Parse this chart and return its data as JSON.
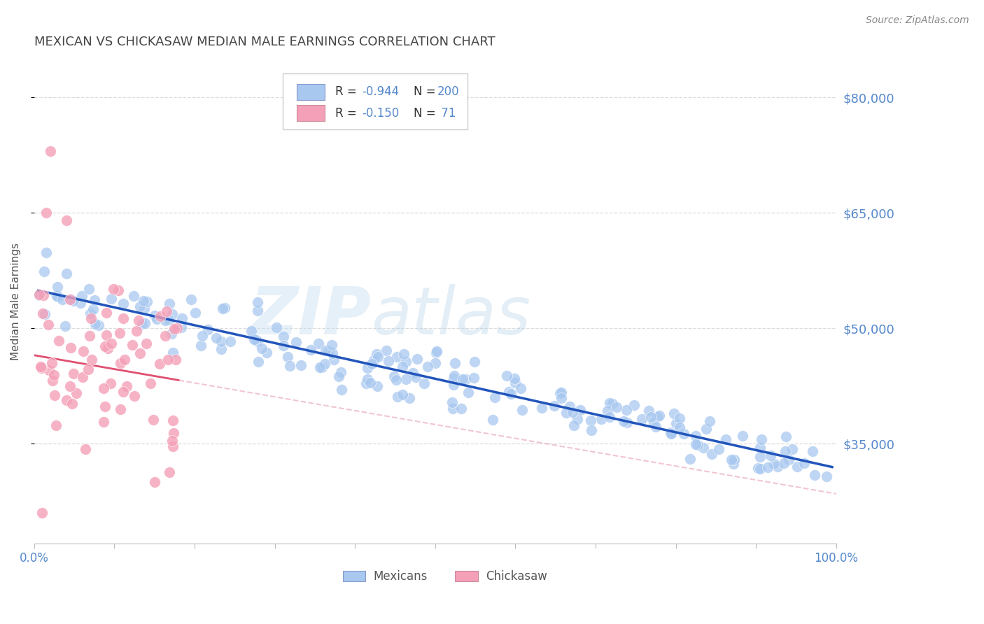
{
  "title": "MEXICAN VS CHICKASAW MEDIAN MALE EARNINGS CORRELATION CHART",
  "source": "Source: ZipAtlas.com",
  "ylabel": "Median Male Earnings",
  "ylim": [
    22000,
    85000
  ],
  "xlim": [
    0.0,
    1.0
  ],
  "yticks_right": [
    35000,
    50000,
    65000,
    80000
  ],
  "ytick_right_labels": [
    "$35,000",
    "$50,000",
    "$65,000",
    "$80,000"
  ],
  "blue_color": "#a8c8f0",
  "blue_line_color": "#2255bb",
  "pink_color": "#f4a0b8",
  "pink_line_color": "#e05070",
  "pink_dash_color": "#e8a0b0",
  "grid_color": "#cccccc",
  "blue_R": -0.944,
  "blue_N": 200,
  "pink_R": -0.15,
  "pink_N": 71,
  "bottom_legend_blue": "Mexicans",
  "bottom_legend_pink": "Chickasaw",
  "title_color": "#444444",
  "tick_color": "#5588cc",
  "source_color": "#888888"
}
